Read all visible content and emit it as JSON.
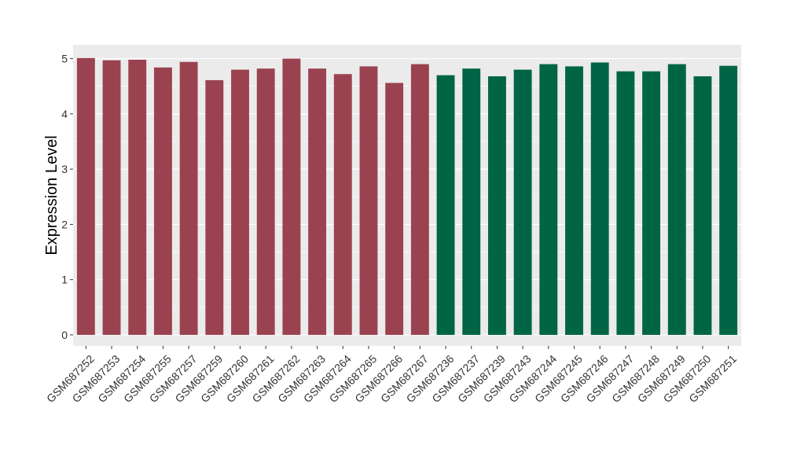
{
  "chart_data": {
    "type": "bar",
    "title": "",
    "xlabel": "",
    "ylabel": "Expression Level",
    "ylim": [
      -0.2,
      5.25
    ],
    "yticks": [
      0,
      1,
      2,
      3,
      4,
      5
    ],
    "grid": true,
    "panel_background": "#ebebeb",
    "grid_color": "#ffffff",
    "categories": [
      "GSM687252",
      "GSM687253",
      "GSM687254",
      "GSM687255",
      "GSM687257",
      "GSM687259",
      "GSM687260",
      "GSM687261",
      "GSM687262",
      "GSM687263",
      "GSM687264",
      "GSM687265",
      "GSM687266",
      "GSM687267",
      "GSM687236",
      "GSM687237",
      "GSM687239",
      "GSM687243",
      "GSM687244",
      "GSM687245",
      "GSM687246",
      "GSM687247",
      "GSM687248",
      "GSM687249",
      "GSM687250",
      "GSM687251"
    ],
    "values": [
      5.01,
      4.97,
      4.98,
      4.84,
      4.94,
      4.61,
      4.8,
      4.82,
      5.0,
      4.82,
      4.72,
      4.86,
      4.56,
      4.9,
      4.7,
      4.82,
      4.68,
      4.8,
      4.9,
      4.86,
      4.93,
      4.77,
      4.77,
      4.9,
      4.68,
      4.87
    ],
    "bar_colors": [
      "#9b4250",
      "#9b4250",
      "#9b4250",
      "#9b4250",
      "#9b4250",
      "#9b4250",
      "#9b4250",
      "#9b4250",
      "#9b4250",
      "#9b4250",
      "#9b4250",
      "#9b4250",
      "#9b4250",
      "#9b4250",
      "#006544",
      "#006544",
      "#006544",
      "#006544",
      "#006544",
      "#006544",
      "#006544",
      "#006544",
      "#006544",
      "#006544",
      "#006544",
      "#006544"
    ]
  }
}
